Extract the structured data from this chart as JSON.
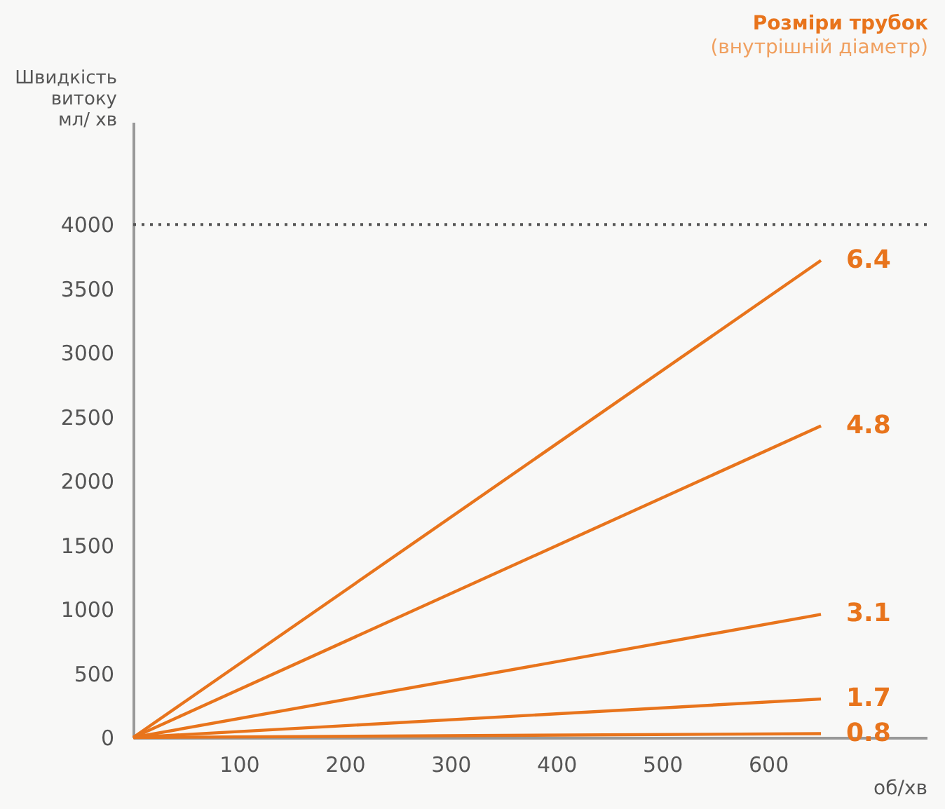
{
  "chart_data": {
    "type": "line",
    "legend_title": "Розміри трубок",
    "annotations": [
      "(внутрішній діаметр)"
    ],
    "ylabel": "Швидкість витоку мл/ хв",
    "xlabel": "об/хв",
    "x": [
      0,
      650
    ],
    "series": [
      {
        "name": "6.4",
        "color": "#e8741c",
        "values": [
          0,
          3720
        ]
      },
      {
        "name": "4.8",
        "color": "#e8741c",
        "values": [
          0,
          2430
        ]
      },
      {
        "name": "3.1",
        "color": "#e8741c",
        "values": [
          0,
          960
        ]
      },
      {
        "name": "1.7",
        "color": "#e8741c",
        "values": [
          0,
          300
        ]
      },
      {
        "name": "0.8",
        "color": "#e8741c",
        "values": [
          0,
          30
        ]
      }
    ],
    "xlim": [
      0,
      750
    ],
    "xticks": [
      100,
      200,
      300,
      400,
      500,
      600
    ],
    "ylim": [
      0,
      4800
    ],
    "yticks": [
      0,
      500,
      1000,
      1500,
      2000,
      2500,
      3000,
      3500,
      4000
    ],
    "ref_lines": [
      {
        "axis": "y",
        "value": 4000,
        "color": "#555555",
        "line_style": "dotted"
      }
    ],
    "grid": false,
    "legend": false,
    "line_style": "solid",
    "marker": "none"
  }
}
